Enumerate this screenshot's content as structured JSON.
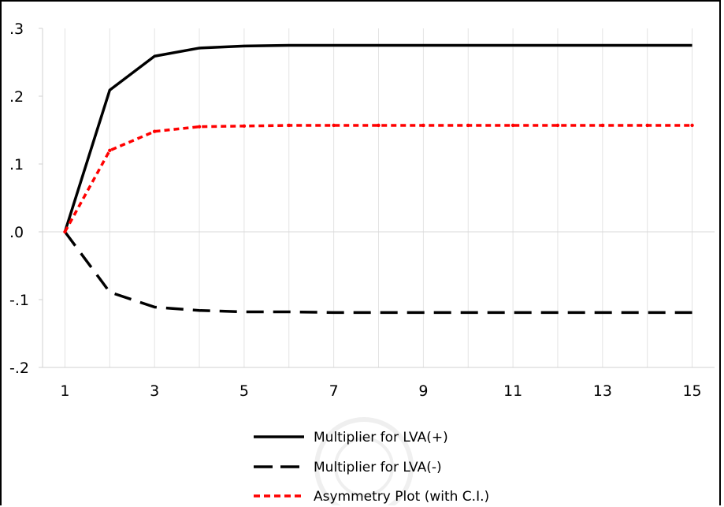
{
  "chart_data": {
    "type": "line",
    "x": [
      1,
      2,
      3,
      4,
      5,
      6,
      7,
      8,
      9,
      10,
      11,
      12,
      13,
      14,
      15
    ],
    "x_tick_labels": [
      "1",
      "3",
      "5",
      "7",
      "9",
      "11",
      "13",
      "15"
    ],
    "x_tick_values": [
      1,
      3,
      5,
      7,
      9,
      11,
      13,
      15
    ],
    "y_tick_labels": [
      ".3",
      ".2",
      ".1",
      ".0",
      "-.1",
      "-.2"
    ],
    "y_tick_values": [
      0.3,
      0.2,
      0.1,
      0.0,
      -0.1,
      -0.2
    ],
    "xlim": [
      0.5,
      15.5
    ],
    "ylim": [
      -0.2,
      0.3
    ],
    "grid": true,
    "legend_position": "bottom-center",
    "series": [
      {
        "name": "Multiplier for LVA(+)",
        "style": "solid",
        "color": "#000000",
        "values": [
          0.0,
          0.209,
          0.259,
          0.271,
          0.274,
          0.275,
          0.275,
          0.275,
          0.275,
          0.275,
          0.275,
          0.275,
          0.275,
          0.275,
          0.275
        ]
      },
      {
        "name": "Multiplier for LVA(-)",
        "style": "long-dash",
        "color": "#000000",
        "values": [
          0.0,
          -0.089,
          -0.111,
          -0.116,
          -0.118,
          -0.118,
          -0.119,
          -0.119,
          -0.119,
          -0.119,
          -0.119,
          -0.119,
          -0.119,
          -0.119,
          -0.119
        ]
      },
      {
        "name": "Asymmetry Plot (with C.I.)",
        "style": "short-dash",
        "color": "#ff0000",
        "values": [
          0.0,
          0.12,
          0.148,
          0.155,
          0.156,
          0.157,
          0.157,
          0.157,
          0.157,
          0.157,
          0.157,
          0.157,
          0.157,
          0.157,
          0.157
        ]
      }
    ]
  }
}
